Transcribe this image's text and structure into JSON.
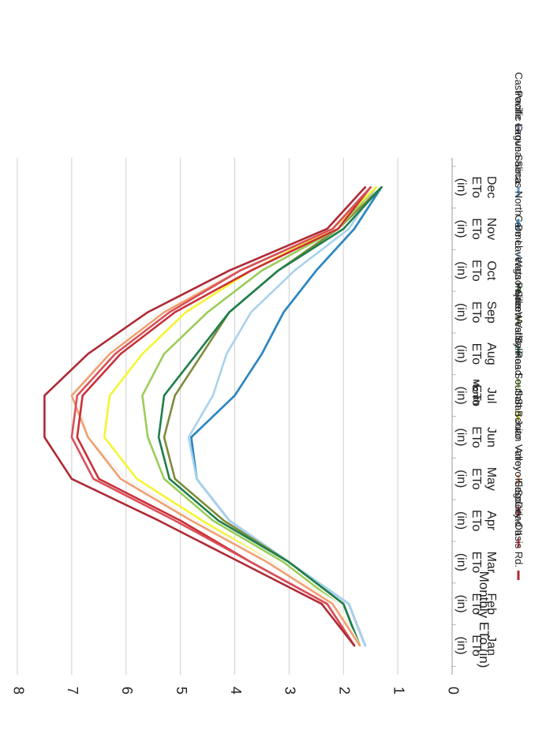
{
  "chart_data": {
    "type": "line",
    "title": "",
    "xlabel": "Month",
    "ylabel": "Monthly ETo (in)",
    "ylim": [
      0,
      8
    ],
    "yticks": [
      0,
      1,
      2,
      3,
      4,
      5,
      6,
      7,
      8
    ],
    "grid": true,
    "legend_position": "right",
    "orientation": "rotated-90-clockwise",
    "categories": [
      [
        "Jan",
        "ETo",
        "(in)"
      ],
      [
        "Feb",
        "ETo",
        "(in)"
      ],
      [
        "Mar",
        "ETo",
        "(in)"
      ],
      [
        "Apr",
        "ETo",
        "(in)"
      ],
      [
        "May",
        "ETo",
        "(in)"
      ],
      [
        "Jun",
        "ETo",
        "(in)"
      ],
      [
        "Jul",
        "ETo",
        "(in)"
      ],
      [
        "Aug",
        "ETo",
        "(in)"
      ],
      [
        "Sep",
        "ETo",
        "(in)"
      ],
      [
        "Oct",
        "ETo",
        "(in)"
      ],
      [
        "Nov",
        "ETo",
        "(in)"
      ],
      [
        "Dec",
        "ETo",
        "(in)"
      ]
    ],
    "series": [
      {
        "name": "Castroville",
        "color": "#6f6a8f",
        "values": [
          1.6,
          1.9,
          null,
          null,
          null,
          null,
          null,
          null,
          null,
          null,
          null,
          null
        ]
      },
      {
        "name": "Pacific Grove",
        "color": "#c9c9c9",
        "values": [
          1.6,
          1.9,
          null,
          null,
          null,
          null,
          null,
          null,
          null,
          null,
          null,
          null
        ]
      },
      {
        "name": "Laguna Seca",
        "color": "#5b9bd5",
        "values": [
          1.6,
          1.9,
          3.0,
          4.1,
          4.7,
          4.8,
          4.0,
          3.5,
          3.1,
          2.5,
          1.8,
          1.3
        ]
      },
      {
        "name": "Salinas North",
        "color": "#2e86c1",
        "values": [
          1.6,
          1.9,
          3.0,
          4.1,
          4.7,
          4.8,
          4.0,
          3.5,
          3.1,
          2.5,
          1.8,
          1.3
        ]
      },
      {
        "name": "Carmel",
        "color": "#a9d2ec",
        "values": [
          1.6,
          1.9,
          3.0,
          4.1,
          4.7,
          4.85,
          4.4,
          4.15,
          3.7,
          2.9,
          1.9,
          1.4
        ]
      },
      {
        "name": "De Laveaga",
        "color": "#3d7d3d",
        "values": [
          1.7,
          2.0,
          null,
          3.8,
          null,
          null,
          null,
          null,
          null,
          null,
          null,
          null
        ]
      },
      {
        "name": "Pajaro",
        "color": "#7f8b3a",
        "values": [
          1.7,
          2.0,
          3.0,
          4.2,
          5.1,
          5.3,
          5.1,
          4.6,
          4.1,
          3.2,
          2.1,
          1.3
        ]
      },
      {
        "name": "Watsonville West II",
        "color": "#1e7f4b",
        "values": [
          1.7,
          2.0,
          3.0,
          4.3,
          5.2,
          5.4,
          5.3,
          4.7,
          4.1,
          3.2,
          2.0,
          1.3
        ]
      },
      {
        "name": "Green Valley Road",
        "color": "#9ccc5a",
        "values": [
          1.7,
          2.1,
          3.1,
          4.4,
          5.3,
          5.6,
          5.7,
          5.3,
          4.5,
          3.5,
          2.1,
          1.4
        ]
      },
      {
        "name": "Salinas South II",
        "color": "#f5f532",
        "values": [
          1.7,
          2.1,
          3.3,
          4.6,
          5.8,
          6.4,
          6.3,
          5.7,
          4.9,
          3.7,
          2.2,
          1.4
        ]
      },
      {
        "name": "San Benito",
        "color": "#f5f5f5",
        "values": [
          1.7,
          2.1,
          3.3,
          4.7,
          6.0,
          6.7,
          6.9,
          6.4,
          5.4,
          4.0,
          2.3,
          1.5
        ]
      },
      {
        "name": "San Juan Valley",
        "color": "#f0a070",
        "values": [
          1.7,
          2.2,
          3.4,
          4.8,
          6.1,
          6.7,
          7.0,
          6.3,
          5.3,
          3.9,
          2.2,
          1.5
        ]
      },
      {
        "name": "Arroyo Seco",
        "color": "#c93038",
        "values": [
          1.8,
          2.3,
          3.7,
          5.0,
          6.5,
          6.9,
          6.8,
          6.1,
          5.1,
          3.7,
          2.1,
          1.5
        ]
      },
      {
        "name": "Soledad II",
        "color": "#d9505a",
        "values": [
          1.8,
          2.3,
          3.7,
          5.1,
          6.6,
          7.0,
          6.9,
          6.2,
          5.2,
          3.9,
          2.2,
          1.5
        ]
      },
      {
        "name": "King City-Oasis Rd.",
        "color": "#b02a35",
        "values": [
          1.8,
          2.4,
          3.9,
          5.4,
          7.0,
          7.5,
          7.5,
          6.7,
          5.6,
          4.1,
          2.3,
          1.6
        ]
      }
    ]
  }
}
